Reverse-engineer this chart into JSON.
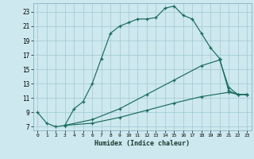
{
  "xlabel": "Humidex (Indice chaleur)",
  "bg_color": "#cde8ee",
  "grid_color": "#a0c8d4",
  "line_color": "#1a6b5e",
  "xlim": [
    -0.5,
    23.5
  ],
  "ylim": [
    6.5,
    24.2
  ],
  "xticks": [
    0,
    1,
    2,
    3,
    4,
    5,
    6,
    7,
    8,
    9,
    10,
    11,
    12,
    13,
    14,
    15,
    16,
    17,
    18,
    19,
    20,
    21,
    22,
    23
  ],
  "yticks": [
    7,
    9,
    11,
    13,
    15,
    17,
    19,
    21,
    23
  ],
  "line1_x": [
    0,
    1,
    2,
    3,
    4,
    5,
    6,
    7,
    8,
    9,
    10,
    11,
    12,
    13,
    14,
    15,
    16,
    17,
    18,
    19,
    20,
    21,
    22,
    23
  ],
  "line1_y": [
    9,
    7.5,
    7,
    7.2,
    9.5,
    10.5,
    13,
    16.5,
    20,
    21,
    21.5,
    22,
    22,
    22.2,
    23.5,
    23.8,
    22.5,
    22,
    20,
    18,
    16.5,
    12,
    11.5,
    11.5
  ],
  "line2_x": [
    3,
    6,
    9,
    12,
    15,
    18,
    20,
    21,
    22,
    23
  ],
  "line2_y": [
    7.2,
    8.0,
    9.5,
    11.5,
    13.5,
    15.5,
    16.3,
    12.5,
    11.5,
    11.5
  ],
  "line3_x": [
    3,
    6,
    9,
    12,
    15,
    18,
    21,
    22,
    23
  ],
  "line3_y": [
    7.2,
    7.5,
    8.3,
    9.3,
    10.3,
    11.2,
    11.8,
    11.5,
    11.5
  ]
}
